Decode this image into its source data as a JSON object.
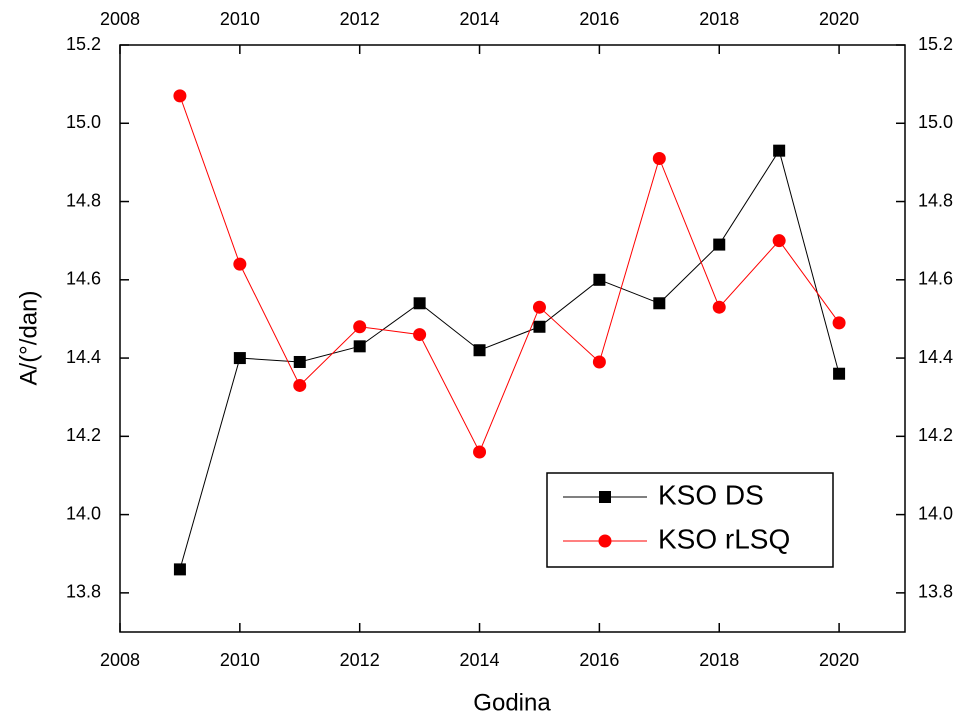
{
  "chart_data": {
    "type": "line",
    "x_label": "Godina",
    "y_label": "A/(°/dan)",
    "x": [
      2009,
      2010,
      2011,
      2012,
      2013,
      2014,
      2015,
      2016,
      2017,
      2018,
      2019,
      2020
    ],
    "series": [
      {
        "name": "KSO DS",
        "color": "#000000",
        "marker": "square",
        "values": [
          13.86,
          14.4,
          14.39,
          14.43,
          14.54,
          14.42,
          14.48,
          14.6,
          14.54,
          14.69,
          14.93,
          14.36
        ]
      },
      {
        "name": "KSO rLSQ",
        "color": "#ff0000",
        "marker": "circle",
        "values": [
          15.07,
          14.64,
          14.33,
          14.48,
          14.46,
          14.16,
          14.53,
          14.39,
          14.91,
          14.53,
          14.7,
          14.49
        ]
      }
    ],
    "xlim": [
      2008,
      2021.1
    ],
    "xticks": [
      2008,
      2010,
      2012,
      2014,
      2016,
      2018,
      2020
    ],
    "ylim": [
      13.7,
      15.2
    ],
    "yticks": [
      {
        "value": 13.8,
        "label": "13.8"
      },
      {
        "value": 14.0,
        "label": "14.0"
      },
      {
        "value": 14.2,
        "label": "14.2"
      },
      {
        "value": 14.4,
        "label": "14.4"
      },
      {
        "value": 14.6,
        "label": "14.6"
      },
      {
        "value": 14.8,
        "label": "14.8"
      },
      {
        "value": 15.0,
        "label": "15.0"
      },
      {
        "value": 15.2,
        "label": "15.2"
      }
    ],
    "legend_position": "lower right"
  }
}
